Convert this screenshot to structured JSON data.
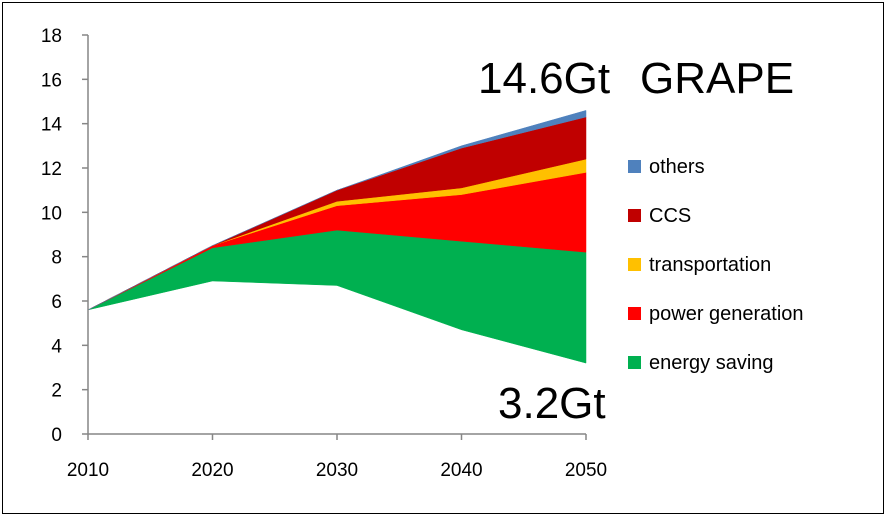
{
  "chart_data": {
    "type": "area",
    "stacked": true,
    "x": [
      2010,
      2020,
      2030,
      2040,
      2050
    ],
    "xlabel": "",
    "ylabel": "",
    "ylim": [
      0,
      18
    ],
    "yticks": [
      0,
      2,
      4,
      6,
      8,
      10,
      12,
      14,
      16,
      18
    ],
    "grid": false,
    "legend_position": "right",
    "baseline": [
      5.6,
      6.9,
      6.7,
      4.7,
      3.2
    ],
    "series": [
      {
        "name": "energy saving",
        "color": "#00B050",
        "values": [
          0,
          1.5,
          2.5,
          4.0,
          5.0
        ]
      },
      {
        "name": "power generation",
        "color": "#FF0000",
        "values": [
          0,
          0.1,
          1.1,
          2.1,
          3.6
        ]
      },
      {
        "name": "transportation",
        "color": "#FFC000",
        "values": [
          0,
          0.0,
          0.2,
          0.3,
          0.6
        ]
      },
      {
        "name": "CCS",
        "color": "#C00000",
        "values": [
          0,
          0.0,
          0.5,
          1.8,
          1.9
        ]
      },
      {
        "name": "others",
        "color": "#4F81BD",
        "values": [
          0,
          0.0,
          0.0,
          0.1,
          0.3
        ]
      }
    ],
    "annotations": [
      {
        "text": "14.6Gt",
        "anchor": "top"
      },
      {
        "text": "GRAPE",
        "anchor": "top"
      },
      {
        "text": "3.2Gt",
        "anchor": "bottom"
      }
    ]
  }
}
